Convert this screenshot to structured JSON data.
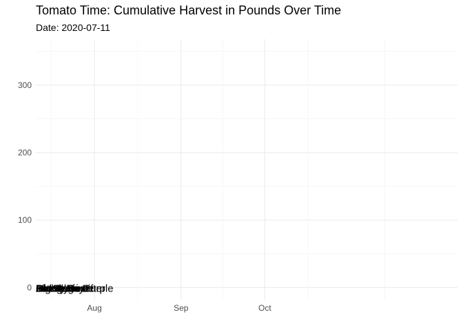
{
  "chart_data": {
    "type": "line",
    "title": "Tomato Time: Cumulative Harvest in Pounds Over Time",
    "subtitle": "Date: 2020-07-11",
    "xlabel": "",
    "ylabel": "",
    "x_ticks": [
      "Aug",
      "Sep",
      "Oct"
    ],
    "y_ticks": [
      0,
      100,
      200,
      300
    ],
    "ylim": [
      -18,
      368
    ],
    "grid": true,
    "legend": "none",
    "series": [
      {
        "name": "Amish Paste",
        "x": [
          "2020-07-11"
        ],
        "values": [
          0
        ]
      },
      {
        "name": "Better Boy",
        "x": [
          "2020-07-11"
        ],
        "values": [
          0
        ]
      },
      {
        "name": "Big Beef",
        "x": [
          "2020-07-11"
        ],
        "values": [
          0
        ]
      },
      {
        "name": "Bonny Best",
        "x": [
          "2020-07-11"
        ],
        "values": [
          0
        ]
      },
      {
        "name": "Brandywine",
        "x": [
          "2020-07-11"
        ],
        "values": [
          0
        ]
      },
      {
        "name": "Cherokee Purple",
        "x": [
          "2020-07-11"
        ],
        "values": [
          0
        ]
      },
      {
        "name": "Jet Star",
        "x": [
          "2020-07-11"
        ],
        "values": [
          0
        ]
      },
      {
        "name": "Mortgage Lifter",
        "x": [
          "2020-07-11"
        ],
        "values": [
          0
        ]
      },
      {
        "name": "Old German",
        "x": [
          "2020-07-11"
        ],
        "values": [
          0
        ]
      }
    ]
  }
}
